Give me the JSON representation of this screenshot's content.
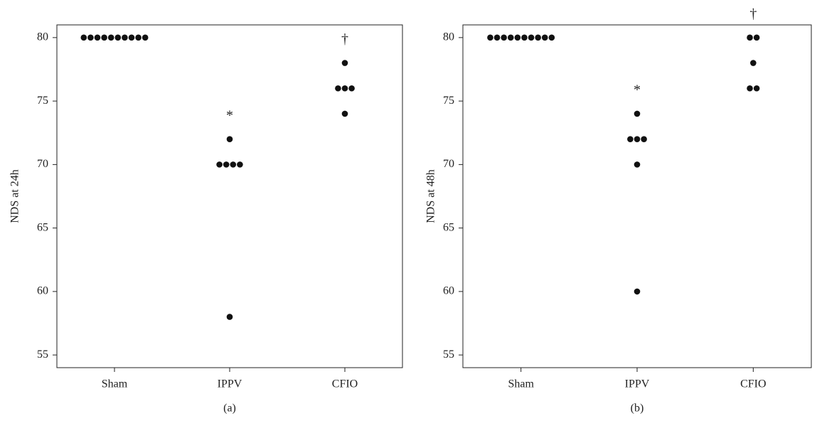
{
  "chart_data": [
    {
      "type": "dotplot",
      "ylabel": "NDS at 24h",
      "caption": "(a)",
      "categories": [
        "Sham",
        "IPPV",
        "CFIO"
      ],
      "values": [
        [
          80,
          80,
          80,
          80,
          80,
          80,
          80,
          80,
          80,
          80
        ],
        [
          72,
          70,
          70,
          70,
          70,
          58
        ],
        [
          78,
          76,
          76,
          76,
          74
        ]
      ],
      "markers": [
        null,
        "*",
        "†"
      ],
      "color": "#111111",
      "ylim": [
        54,
        81
      ],
      "yticks": [
        55,
        60,
        65,
        70,
        75,
        80
      ]
    },
    {
      "type": "dotplot",
      "ylabel": "NDS at 48h",
      "caption": "(b)",
      "categories": [
        "Sham",
        "IPPV",
        "CFIO"
      ],
      "values": [
        [
          80,
          80,
          80,
          80,
          80,
          80,
          80,
          80,
          80,
          80
        ],
        [
          74,
          72,
          72,
          72,
          70,
          60
        ],
        [
          80,
          80,
          78,
          76,
          76
        ]
      ],
      "markers": [
        null,
        "*",
        "†"
      ],
      "color": "#111111",
      "ylim": [
        54,
        81
      ],
      "yticks": [
        55,
        60,
        65,
        70,
        75,
        80
      ]
    }
  ]
}
